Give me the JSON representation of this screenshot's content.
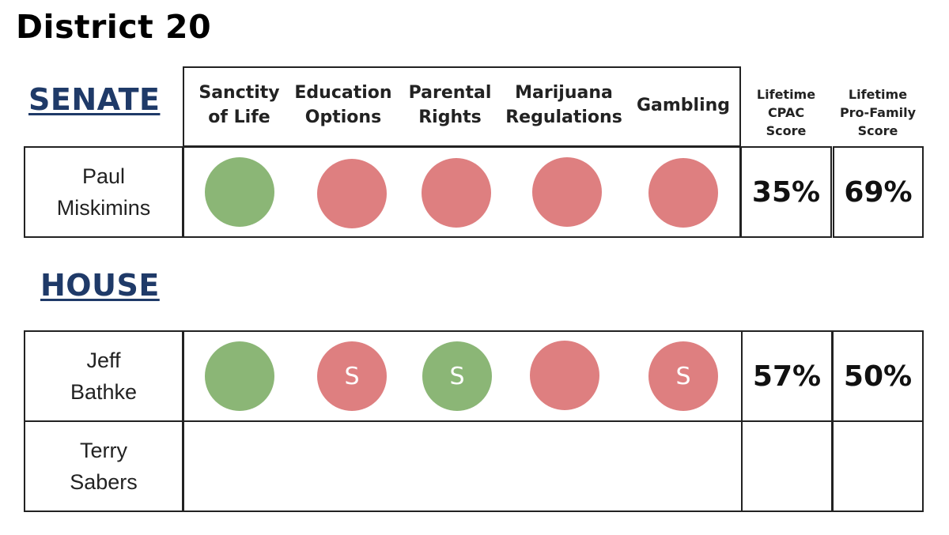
{
  "title": "District 20",
  "sections": {
    "senate": "SENATE",
    "house": "HOUSE"
  },
  "columns": {
    "sanctity": [
      "Sanctity",
      "of Life"
    ],
    "education": [
      "Education",
      "Options"
    ],
    "parental": [
      "Parental",
      "Rights"
    ],
    "marijuana": [
      "Marijuana",
      "Regulations"
    ],
    "gambling": "Gambling",
    "cpac": [
      "Lifetime",
      "CPAC",
      "Score"
    ],
    "profamily": [
      "Lifetime",
      "Pro-Family",
      "Score"
    ]
  },
  "legend_colors": {
    "support": "#8bb676",
    "oppose": "#de7f80"
  },
  "senate_candidates": [
    {
      "name": [
        "Paul",
        "Miskimins"
      ],
      "ratings": [
        {
          "status": "support",
          "mark": ""
        },
        {
          "status": "oppose",
          "mark": ""
        },
        {
          "status": "oppose",
          "mark": ""
        },
        {
          "status": "oppose",
          "mark": ""
        },
        {
          "status": "oppose",
          "mark": ""
        }
      ],
      "cpac": "35%",
      "profamily": "69%"
    }
  ],
  "house_candidates": [
    {
      "name": [
        "Jeff",
        "Bathke"
      ],
      "ratings": [
        {
          "status": "support",
          "mark": ""
        },
        {
          "status": "oppose",
          "mark": "S"
        },
        {
          "status": "support",
          "mark": "S"
        },
        {
          "status": "oppose",
          "mark": ""
        },
        {
          "status": "oppose",
          "mark": "S"
        }
      ],
      "cpac": "57%",
      "profamily": "50%"
    },
    {
      "name": [
        "Terry",
        "Sabers"
      ],
      "ratings": [],
      "cpac": "",
      "profamily": ""
    }
  ]
}
